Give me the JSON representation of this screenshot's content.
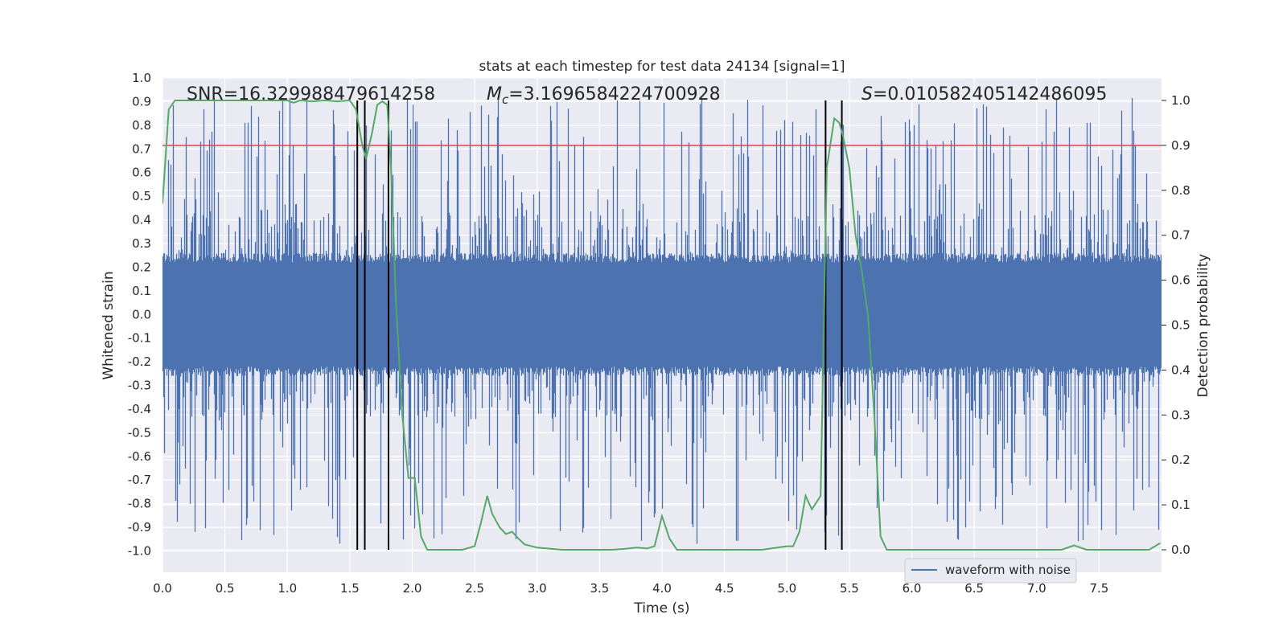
{
  "chart_data": {
    "type": "line",
    "title": "stats at each timestep for test data 24134 [signal=1]",
    "xlabel": "Time (s)",
    "ylabel_left": "Whitened strain",
    "ylabel_right": "Detection probability",
    "xlim": [
      0.0,
      8.0
    ],
    "ylim_left": [
      -1.09,
      1.0
    ],
    "ylim_right": [
      -0.05,
      1.05
    ],
    "x_ticks": [
      "0.0",
      "0.5",
      "1.0",
      "1.5",
      "2.0",
      "2.5",
      "3.0",
      "3.5",
      "4.0",
      "4.5",
      "5.0",
      "5.5",
      "6.0",
      "6.5",
      "7.0",
      "7.5"
    ],
    "y_left_ticks": [
      "1.0",
      "0.9",
      "0.8",
      "0.7",
      "0.6",
      "0.5",
      "0.4",
      "0.3",
      "0.2",
      "0.1",
      "0.0",
      "-0.1",
      "-0.2",
      "-0.3",
      "-0.4",
      "-0.5",
      "-0.6",
      "-0.7",
      "-0.8",
      "-0.9",
      "-1.0"
    ],
    "y_right_ticks": [
      "0.0",
      "0.1",
      "0.2",
      "0.3",
      "0.4",
      "0.5",
      "0.6",
      "0.7",
      "0.8",
      "0.9",
      "1.0"
    ],
    "grid": true,
    "annotations": {
      "snr": "SNR=16.329988479614258",
      "mc_symbol": "M",
      "mc_subscript": "c",
      "mc_value": "=3.1696584224700928",
      "s_symbol": "S",
      "s_value": "=0.010582405142486095"
    },
    "threshold": {
      "value": 0.9,
      "axis": "right",
      "color": "#c44e52"
    },
    "vertical_markers": [
      1.56,
      1.62,
      1.81,
      5.31,
      5.44
    ],
    "series": [
      {
        "name": "waveform with noise",
        "axis": "left",
        "color": "#4c72b0",
        "kind": "noise",
        "samples": 4096,
        "core_amplitude": 0.22,
        "spike_max": 0.92,
        "spike_min": -0.97
      },
      {
        "name": "detection probability",
        "axis": "right",
        "color": "#55a868",
        "x": [
          0.0,
          0.05,
          0.1,
          0.2,
          0.5,
          0.8,
          1.0,
          1.05,
          1.1,
          1.2,
          1.3,
          1.4,
          1.5,
          1.55,
          1.6,
          1.63,
          1.68,
          1.72,
          1.76,
          1.8,
          1.83,
          1.87,
          1.92,
          1.97,
          2.02,
          2.07,
          2.12,
          2.2,
          2.3,
          2.4,
          2.5,
          2.55,
          2.6,
          2.64,
          2.7,
          2.75,
          2.8,
          2.85,
          2.9,
          3.0,
          3.2,
          3.4,
          3.6,
          3.7,
          3.8,
          3.88,
          3.94,
          4.0,
          4.06,
          4.12,
          4.2,
          4.4,
          4.6,
          4.8,
          5.0,
          5.05,
          5.1,
          5.15,
          5.2,
          5.27,
          5.32,
          5.38,
          5.42,
          5.45,
          5.5,
          5.55,
          5.6,
          5.65,
          5.7,
          5.75,
          5.8,
          5.9,
          6.0,
          6.2,
          6.4,
          6.6,
          6.8,
          7.0,
          7.2,
          7.3,
          7.4,
          7.5,
          7.6,
          7.7,
          7.8,
          7.9,
          7.99
        ],
        "y": [
          0.77,
          0.98,
          1.0,
          1.0,
          1.0,
          1.0,
          1.0,
          0.995,
          1.0,
          0.998,
          1.0,
          0.998,
          1.0,
          0.98,
          0.9,
          0.87,
          0.93,
          0.99,
          0.998,
          0.99,
          0.85,
          0.55,
          0.3,
          0.16,
          0.16,
          0.03,
          0.0,
          0.0,
          0.0,
          0.0,
          0.008,
          0.06,
          0.12,
          0.08,
          0.05,
          0.035,
          0.04,
          0.025,
          0.012,
          0.005,
          0.0,
          0.0,
          0.0,
          0.002,
          0.005,
          0.003,
          0.008,
          0.075,
          0.025,
          0.0,
          0.0,
          0.0,
          0.0,
          0.0,
          0.008,
          0.008,
          0.04,
          0.12,
          0.09,
          0.12,
          0.85,
          0.96,
          0.95,
          0.92,
          0.85,
          0.7,
          0.62,
          0.52,
          0.3,
          0.03,
          0.0,
          0.0,
          0.0,
          0.0,
          0.0,
          0.0,
          0.0,
          0.0,
          0.0,
          0.01,
          0.0,
          0.0,
          0.0,
          0.0,
          0.0,
          0.0,
          0.015
        ]
      }
    ],
    "legend": {
      "placement": "lower-center-right",
      "entries": [
        "waveform with noise"
      ]
    }
  }
}
